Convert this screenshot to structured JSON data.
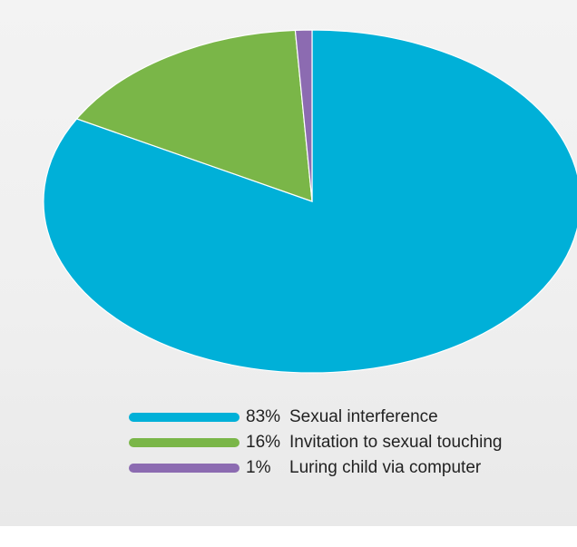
{
  "chart_data": {
    "type": "pie",
    "series": [
      {
        "name": "Sexual interference",
        "percent_label": "83%",
        "value": 83,
        "color": "#00b0d8"
      },
      {
        "name": "Invitation to sexual touching",
        "percent_label": "16%",
        "value": 16,
        "color": "#7ab648"
      },
      {
        "name": "Luring child via computer",
        "percent_label": "1%",
        "value": 1,
        "color": "#8c6bb1"
      }
    ],
    "legend_position": "bottom",
    "start_angle": "top",
    "direction": "clockwise"
  },
  "legend": {
    "items": [
      {
        "pct": "83%",
        "label": "Sexual interference"
      },
      {
        "pct": "16%",
        "label": "Invitation to sexual touching"
      },
      {
        "pct": "1%",
        "label": "Luring child via computer"
      }
    ]
  }
}
